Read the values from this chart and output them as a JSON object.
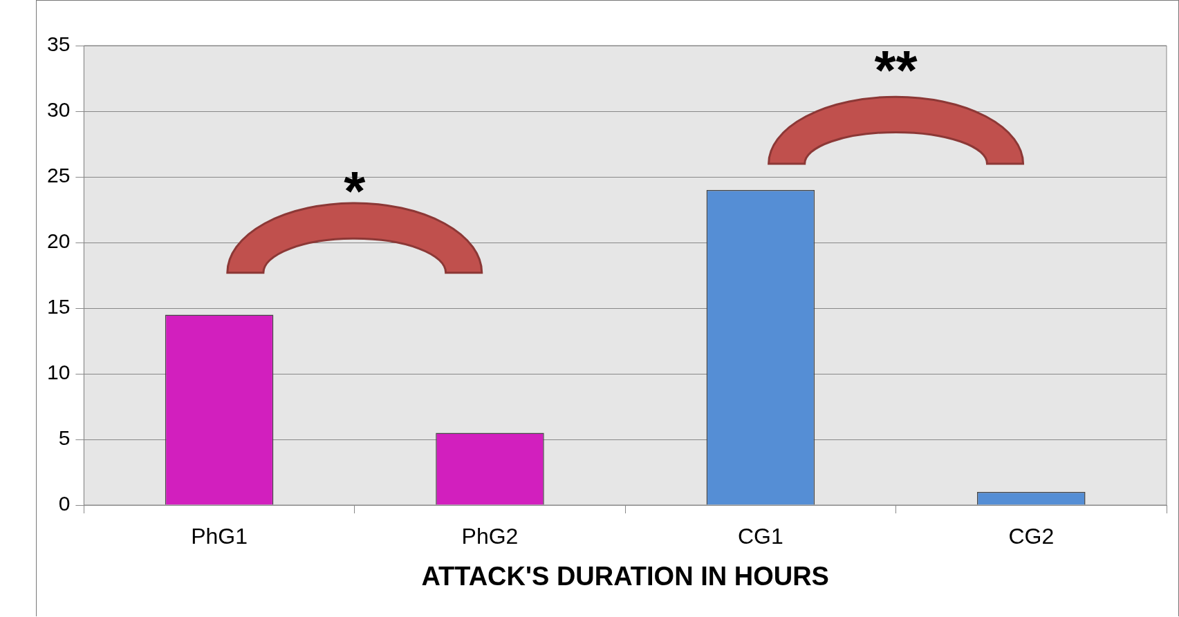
{
  "chart_data": {
    "type": "bar",
    "xlabel": "ATTACK'S DURATION IN HOURS",
    "categories": [
      "PhG1",
      "PhG2",
      "CG1",
      "CG2"
    ],
    "values": [
      14.5,
      5.5,
      24,
      1
    ],
    "colors": [
      "#d21fbe",
      "#d21fbe",
      "#558ed5",
      "#558ed5"
    ],
    "ylim": [
      0,
      35
    ],
    "yticks": [
      0,
      5,
      10,
      15,
      20,
      25,
      30,
      35
    ],
    "grid": "y",
    "legend": false,
    "annotations": [
      "*",
      "**"
    ]
  }
}
